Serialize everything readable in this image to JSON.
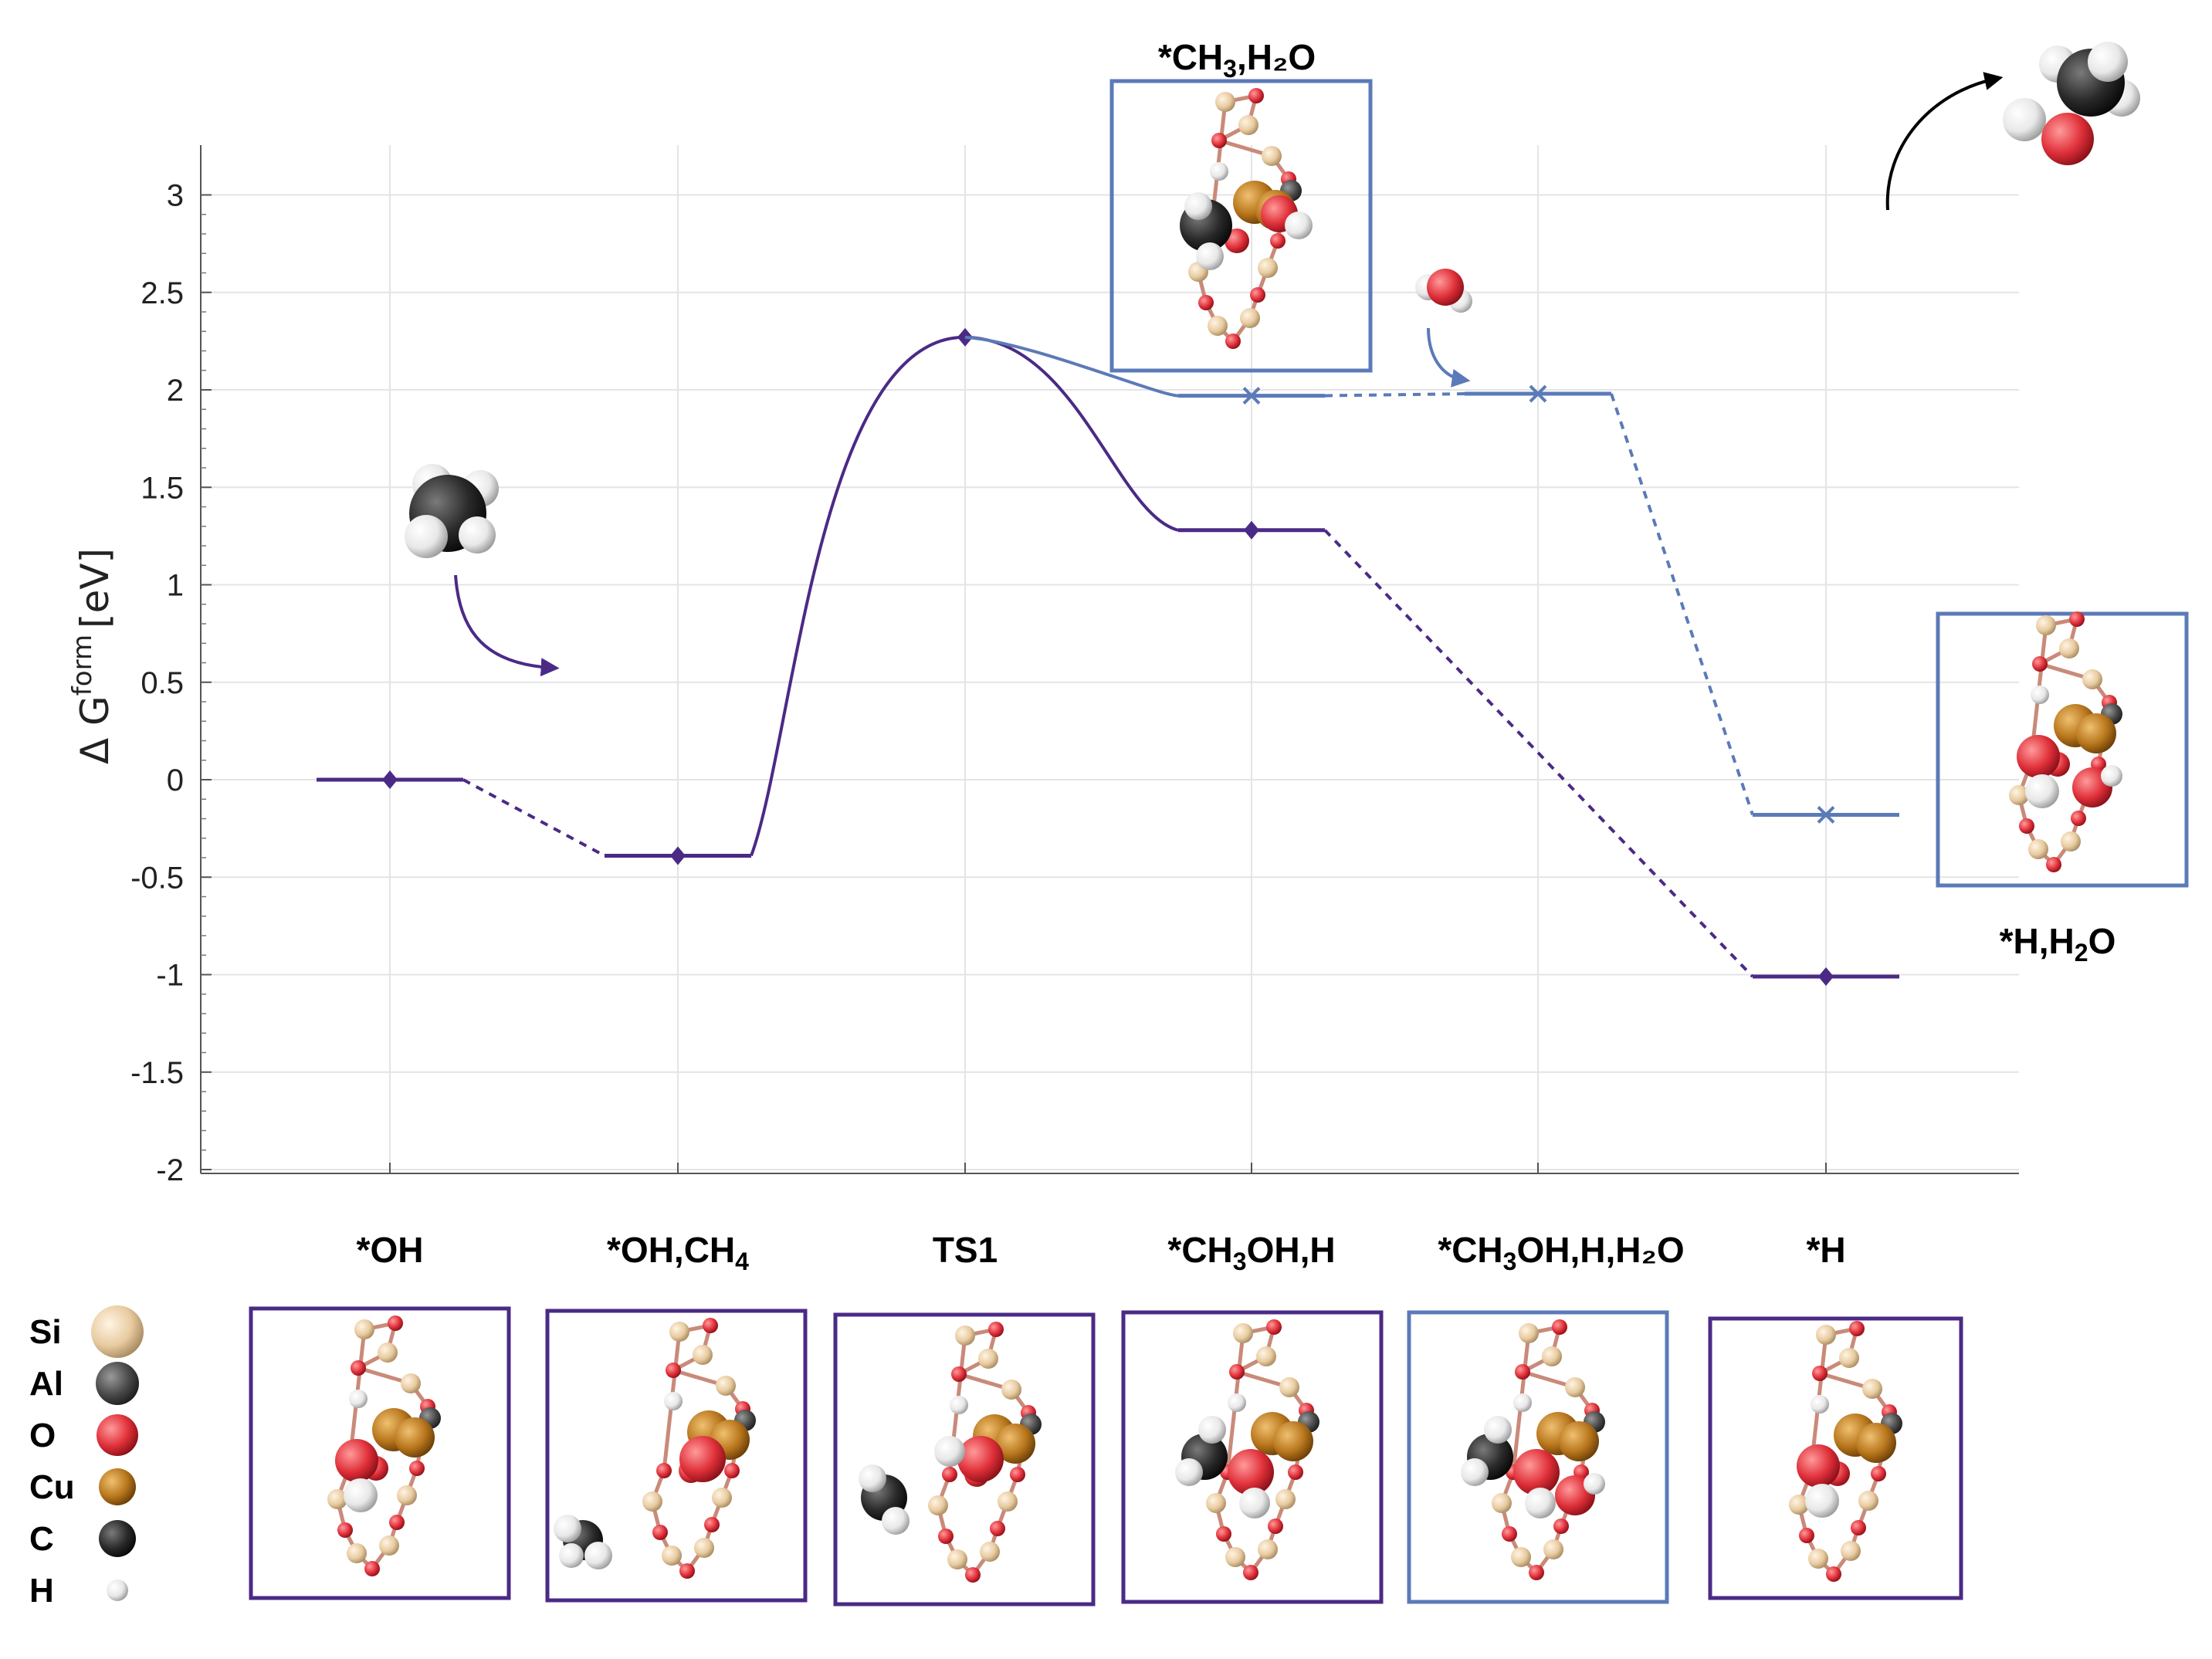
{
  "chart_data": {
    "type": "line",
    "ylabel": "Δ G",
    "ylabel_sup": "form",
    "ylabel_unit": "[eV]",
    "ylim": [
      -2,
      3.25
    ],
    "yticks": [
      "3",
      "2.5",
      "2",
      "1.5",
      "1",
      "0.5",
      "0",
      "-0.5",
      "-1",
      "-1.5",
      "-2"
    ],
    "ytick_values": [
      3,
      2.5,
      2,
      1.5,
      1,
      0.5,
      0,
      -0.5,
      -1,
      -1.5,
      -2
    ],
    "grid": true,
    "states": [
      {
        "label_main": "*OH",
        "label_sub": "",
        "label_tail": ""
      },
      {
        "label_main": "*OH,CH",
        "label_sub": "4",
        "label_tail": ""
      },
      {
        "label_main": "TS1",
        "label_sub": "",
        "label_tail": ""
      },
      {
        "label_main": "*CH",
        "label_sub": "3",
        "label_tail": "OH,H"
      },
      {
        "label_main": "*CH",
        "label_sub": "3",
        "label_tail": "OH,H,H₂O"
      },
      {
        "label_main": "*H",
        "label_sub": "",
        "label_tail": ""
      }
    ],
    "series": [
      {
        "path": "main",
        "color": "#4b2a86",
        "marker": "diamond",
        "x": [
          0,
          1,
          2,
          3,
          5
        ],
        "y": [
          0.0,
          -0.39,
          2.27,
          1.28,
          -1.01
        ]
      },
      {
        "path": "water-assisted",
        "color": "#5b7ab8",
        "marker": "x",
        "x": [
          3,
          4,
          5
        ],
        "y": [
          1.97,
          1.98,
          -0.18
        ]
      }
    ],
    "inset_labels": [
      {
        "text_main": "*CH",
        "text_sub": "3",
        "text_tail": ",H₂O"
      },
      {
        "text_main": "*H,H",
        "text_sub": "2",
        "text_tail": "O"
      }
    ]
  },
  "legend": {
    "items": [
      {
        "label": "Si",
        "color": "#e8cba0"
      },
      {
        "label": "Al",
        "color": "#4a4a4a"
      },
      {
        "label": "O",
        "color": "#e0303a"
      },
      {
        "label": "Cu",
        "color": "#b8761c"
      },
      {
        "label": "C",
        "color": "#2a2a2a"
      },
      {
        "label": "H",
        "color": "#e8e8e8"
      }
    ]
  },
  "colors": {
    "main": "#4b2a86",
    "alt": "#5b7ab8",
    "grid": "#e4e4e4",
    "axis": "#555555"
  }
}
